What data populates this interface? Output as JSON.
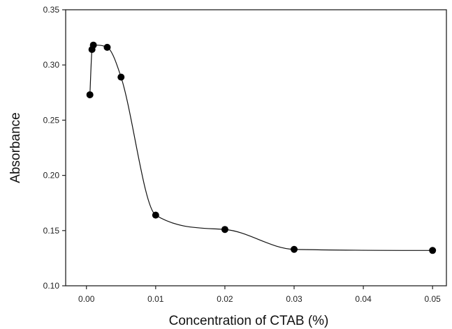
{
  "chart_data": {
    "type": "line",
    "title": "",
    "xlabel": "Concentration of CTAB (%)",
    "ylabel": "Absorbance",
    "xlim": [
      -0.003,
      0.052
    ],
    "ylim": [
      0.1,
      0.35
    ],
    "xticks": [
      0.0,
      0.01,
      0.02,
      0.03,
      0.04,
      0.05
    ],
    "xtick_labels": [
      "0.00",
      "0.01",
      "0.02",
      "0.03",
      "0.04",
      "0.05"
    ],
    "yticks": [
      0.1,
      0.15,
      0.2,
      0.25,
      0.3,
      0.35
    ],
    "ytick_labels": [
      "0.10",
      "0.15",
      "0.20",
      "0.25",
      "0.30",
      "0.35"
    ],
    "grid": false,
    "legend": "none",
    "series": [
      {
        "marker": "circle",
        "line": "smooth",
        "color": "#000000",
        "points": [
          {
            "x": 0.0005,
            "y": 0.273
          },
          {
            "x": 0.0008,
            "y": 0.314
          },
          {
            "x": 0.001,
            "y": 0.318
          },
          {
            "x": 0.003,
            "y": 0.316
          },
          {
            "x": 0.005,
            "y": 0.289
          },
          {
            "x": 0.01,
            "y": 0.164
          },
          {
            "x": 0.02,
            "y": 0.151
          },
          {
            "x": 0.03,
            "y": 0.133
          },
          {
            "x": 0.05,
            "y": 0.132
          }
        ]
      }
    ]
  }
}
